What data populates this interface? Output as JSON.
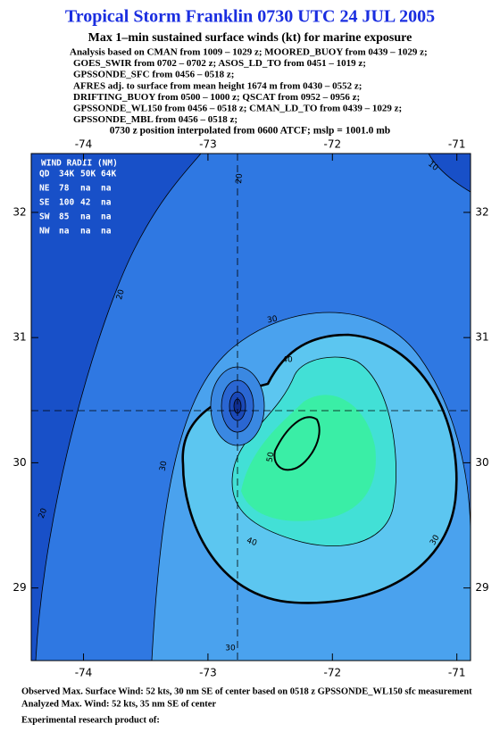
{
  "chart_data": {
    "type": "contour",
    "title": "Tropical Storm Franklin 0730 UTC 24 JUL 2005",
    "subtitle": "Max 1–min sustained surface winds (kt) for marine exposure",
    "notes": [
      "Analysis based on  CMAN from 1009 – 1029 z;  MOORED_BUOY from 0439 – 1029 z;",
      "GOES_SWIR from 0702 – 0702 z;  ASOS_LD_TO from 0451 – 1019 z;",
      "GPSSONDE_SFC from 0456 – 0518 z;",
      "AFRES adj. to surface from mean height 1674 m from 0430 – 0552 z;",
      "DRIFTING_BUOY from 0500 – 1000 z;  QSCAT from 0952 – 0956 z;",
      "GPSSONDE_WL150 from 0456 – 0518 z;  CMAN_LD_TO from 0439 – 1029 z;",
      "GPSSONDE_MBL from 0456 – 0518 z;"
    ],
    "position_note": "0730 z position interpolated from 0600 ATCF; mslp = 1001.0 mb",
    "xlim": [
      -74.42,
      -70.89
    ],
    "ylim": [
      28.42,
      32.47
    ],
    "xticks": [
      -74,
      -73,
      -72,
      -71
    ],
    "yticks": [
      29,
      30,
      31,
      32
    ],
    "contour_labels": [
      20,
      20,
      20,
      10,
      30,
      30,
      30,
      30,
      40,
      40,
      50
    ],
    "wind_radii": {
      "title": "WIND RADII (NM)",
      "rows": [
        [
          "QD",
          "34K",
          "50K",
          "64K"
        ],
        [
          "NE",
          "78",
          "na",
          "na"
        ],
        [
          "SE",
          "100",
          "42",
          "na"
        ],
        [
          "SW",
          "85",
          "na",
          "na"
        ],
        [
          "NW",
          "na",
          "na",
          "na"
        ]
      ]
    },
    "footer": [
      "Observed Max. Surface Wind: 52 kts, 30 nm SE of center based on 0518 z GPSSONDE_WL150 sfc measurement",
      "Analyzed Max. Wind: 52 kts, 35 nm SE of center",
      "Experimental research product of:"
    ]
  }
}
